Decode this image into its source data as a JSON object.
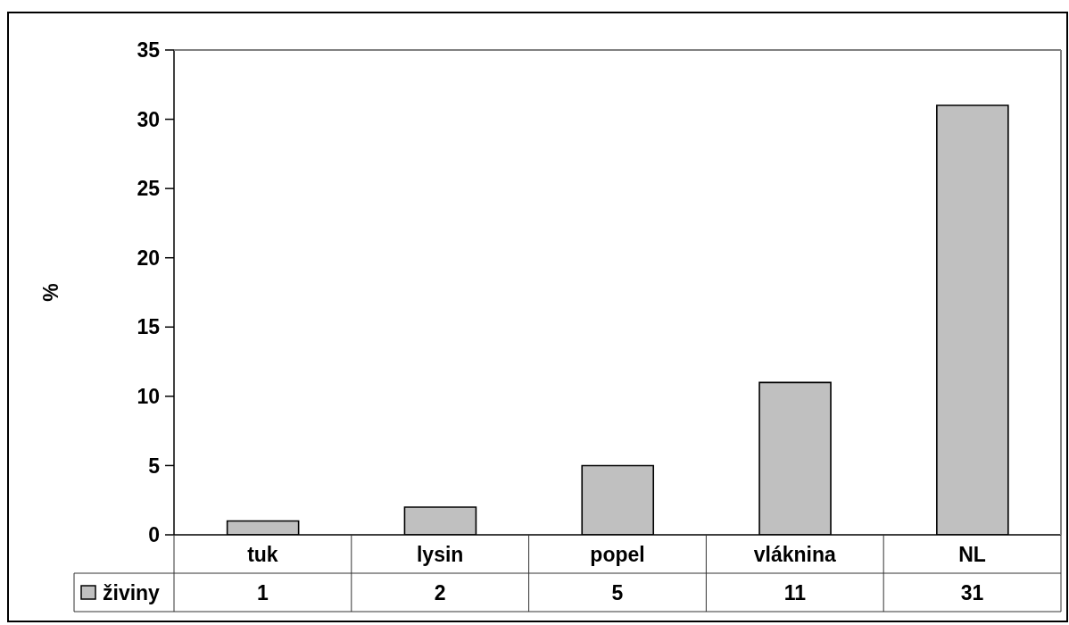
{
  "chart_data": {
    "type": "bar",
    "ylabel": "%",
    "categories": [
      "tuk",
      "lysin",
      "popel",
      "vláknina",
      "NL"
    ],
    "series": [
      {
        "name": "živiny",
        "color": "#c0c0c0",
        "values": [
          1,
          2,
          5,
          11,
          31
        ]
      }
    ],
    "ylim": [
      0,
      35
    ],
    "yticks": [
      0,
      5,
      10,
      15,
      20,
      25,
      30,
      35
    ],
    "data_labels": true,
    "legend": "bottom"
  }
}
